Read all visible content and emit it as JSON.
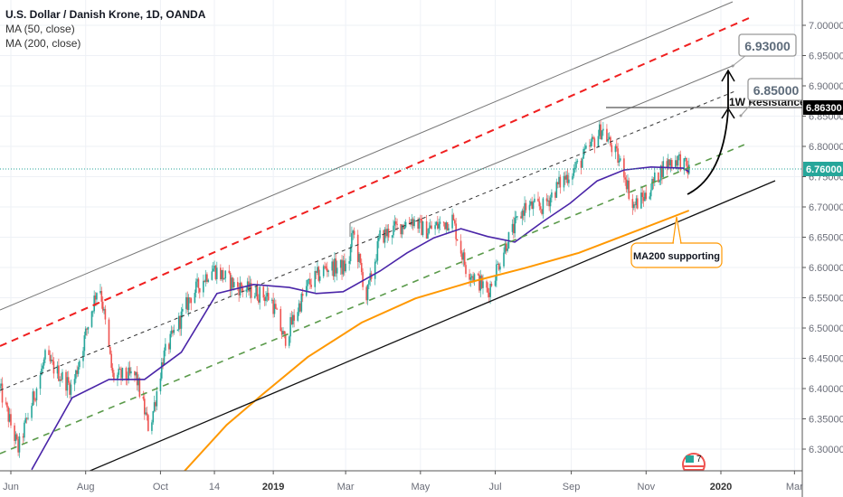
{
  "legend": {
    "title": "U.S. Dollar / Danish Krone, 1D, OANDA",
    "ma50": "MA (50, close)",
    "ma200": "MA (200, close)"
  },
  "colors": {
    "up": "#26a69a",
    "down": "#ef5350",
    "ma50": "#4a25a8",
    "ma200": "#ff9800",
    "channel_red": "#f01f1f",
    "channel_green": "#5a9a4a",
    "last_price_bg": "#26a69a",
    "resistance_bg": "#000000"
  },
  "annotations": {
    "target_high": "6.93000",
    "target_low": "6.85000",
    "resistance_label": "1W Resistance",
    "ma200_note": "MA200 supporting",
    "resistance_price": "6.86300",
    "last_price": "6.76000",
    "event_badge": "7"
  },
  "chart_data": {
    "type": "candlestick",
    "title": "U.S. Dollar / Danish Krone, 1D, OANDA",
    "ylim": [
      6.2616,
      7.0418
    ],
    "y_ticks": [
      "6.30000",
      "6.35000",
      "6.40000",
      "6.45000",
      "6.50000",
      "6.55000",
      "6.60000",
      "6.65000",
      "6.70000",
      "6.75000",
      "6.80000",
      "6.85000",
      "6.90000",
      "6.95000",
      "7.00000"
    ],
    "x_ticks": [
      {
        "label": "Jun",
        "date": "2018-06-01",
        "bold": false
      },
      {
        "label": "Aug",
        "date": "2018-08-01",
        "bold": false
      },
      {
        "label": "Oct",
        "date": "2018-10-01",
        "bold": false
      },
      {
        "label": "14",
        "date": "2018-11-14",
        "bold": false
      },
      {
        "label": "2019",
        "date": "2019-01-01",
        "bold": true
      },
      {
        "label": "Mar",
        "date": "2019-03-01",
        "bold": false
      },
      {
        "label": "May",
        "date": "2019-05-01",
        "bold": false
      },
      {
        "label": "Jul",
        "date": "2019-07-01",
        "bold": false
      },
      {
        "label": "Sep",
        "date": "2019-09-01",
        "bold": false
      },
      {
        "label": "Nov",
        "date": "2019-11-01",
        "bold": false
      },
      {
        "label": "2020",
        "date": "2020-01-01",
        "bold": true
      },
      {
        "label": "Mar",
        "date": "2020-03-01",
        "bold": false
      }
    ],
    "close_path": [
      [
        "2018-05-23",
        6.4
      ],
      [
        "2018-06-07",
        6.3
      ],
      [
        "2018-06-29",
        6.45
      ],
      [
        "2018-07-21",
        6.4
      ],
      [
        "2018-08-12",
        6.58
      ],
      [
        "2018-08-23",
        6.42
      ],
      [
        "2018-09-11",
        6.42
      ],
      [
        "2018-09-22",
        6.33
      ],
      [
        "2018-10-03",
        6.45
      ],
      [
        "2018-10-25",
        6.55
      ],
      [
        "2018-11-12",
        6.6
      ],
      [
        "2018-12-01",
        6.57
      ],
      [
        "2018-12-30",
        6.55
      ],
      [
        "2019-01-10",
        6.48
      ],
      [
        "2019-01-29",
        6.57
      ],
      [
        "2019-02-13",
        6.6
      ],
      [
        "2019-03-03",
        6.6
      ],
      [
        "2019-03-07",
        6.66
      ],
      [
        "2019-03-18",
        6.55
      ],
      [
        "2019-03-29",
        6.65
      ],
      [
        "2019-04-24",
        6.68
      ],
      [
        "2019-05-05",
        6.66
      ],
      [
        "2019-05-27",
        6.68
      ],
      [
        "2019-06-07",
        6.6
      ],
      [
        "2019-06-25",
        6.56
      ],
      [
        "2019-07-10",
        6.64
      ],
      [
        "2019-07-25",
        6.7
      ],
      [
        "2019-08-09",
        6.7
      ],
      [
        "2019-08-23",
        6.74
      ],
      [
        "2019-09-07",
        6.77
      ],
      [
        "2019-09-26",
        6.83
      ],
      [
        "2019-10-14",
        6.76
      ],
      [
        "2019-10-21",
        6.7
      ],
      [
        "2019-11-01",
        6.72
      ],
      [
        "2019-11-16",
        6.77
      ],
      [
        "2019-11-27",
        6.78
      ],
      [
        "2019-12-06",
        6.76
      ]
    ],
    "ma50": [
      [
        "2018-06-18",
        6.266
      ],
      [
        "2018-07-21",
        6.385
      ],
      [
        "2018-08-20",
        6.415
      ],
      [
        "2018-09-18",
        6.415
      ],
      [
        "2018-10-18",
        6.46
      ],
      [
        "2018-11-16",
        6.557
      ],
      [
        "2018-12-16",
        6.572
      ],
      [
        "2019-01-14",
        6.567
      ],
      [
        "2019-02-05",
        6.557
      ],
      [
        "2019-02-27",
        6.56
      ],
      [
        "2019-03-29",
        6.594
      ],
      [
        "2019-04-20",
        6.624
      ],
      [
        "2019-05-12",
        6.649
      ],
      [
        "2019-06-03",
        6.664
      ],
      [
        "2019-06-25",
        6.651
      ],
      [
        "2019-07-17",
        6.642
      ],
      [
        "2019-08-09",
        6.676
      ],
      [
        "2019-08-31",
        6.706
      ],
      [
        "2019-09-22",
        6.743
      ],
      [
        "2019-10-14",
        6.761
      ],
      [
        "2019-11-05",
        6.766
      ],
      [
        "2019-12-01",
        6.764
      ],
      [
        "2019-12-06",
        6.758
      ]
    ],
    "ma200": [
      [
        "2018-10-18",
        6.258
      ],
      [
        "2018-11-24",
        6.34
      ],
      [
        "2018-12-23",
        6.39
      ],
      [
        "2019-01-29",
        6.452
      ],
      [
        "2019-03-14",
        6.509
      ],
      [
        "2019-04-27",
        6.549
      ],
      [
        "2019-06-11",
        6.576
      ],
      [
        "2019-07-25",
        6.599
      ],
      [
        "2019-09-07",
        6.624
      ],
      [
        "2019-10-21",
        6.658
      ],
      [
        "2019-12-06",
        6.694
      ]
    ]
  }
}
